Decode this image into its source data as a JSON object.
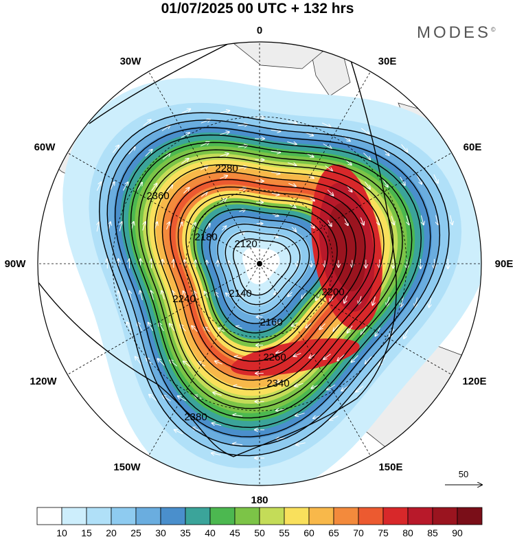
{
  "title": "01/07/2025  00 UTC  + 132 hrs",
  "brand": "MODES",
  "brand_mark": "©",
  "longitude_labels": [
    {
      "id": "lon-0",
      "text": "0"
    },
    {
      "id": "lon-30e",
      "text": "30E"
    },
    {
      "id": "lon-60e",
      "text": "60E"
    },
    {
      "id": "lon-90e",
      "text": "90E"
    },
    {
      "id": "lon-120e",
      "text": "120E"
    },
    {
      "id": "lon-150e",
      "text": "150E"
    },
    {
      "id": "lon-180",
      "text": "180"
    },
    {
      "id": "lon-150w",
      "text": "150W"
    },
    {
      "id": "lon-120w",
      "text": "120W"
    },
    {
      "id": "lon-90w",
      "text": "90W"
    },
    {
      "id": "lon-60w",
      "text": "60W"
    },
    {
      "id": "lon-30w",
      "text": "30W"
    }
  ],
  "contour_labels": [
    "2120",
    "2140",
    "2160",
    "2180",
    "2200",
    "2240",
    "2260",
    "2280",
    "2340",
    "2360",
    "2380"
  ],
  "wind_reference": {
    "value": "50",
    "icon": "arrow-right-icon"
  },
  "colorbar": {
    "tick_labels": [
      "10",
      "15",
      "20",
      "25",
      "30",
      "35",
      "40",
      "45",
      "50",
      "55",
      "60",
      "65",
      "70",
      "75",
      "80",
      "85",
      "90"
    ],
    "colors": [
      "#ffffff",
      "#cdeefc",
      "#b0e0f8",
      "#8ecbf0",
      "#6aaddf",
      "#4a8fcc",
      "#3ba49a",
      "#4cb850",
      "#7cc447",
      "#c4dc58",
      "#f9e05c",
      "#f8b84a",
      "#f38a3c",
      "#ec5a30",
      "#d8282a",
      "#b8192a",
      "#9a141f",
      "#7a0e18"
    ]
  },
  "colors": {
    "land": "#ededed",
    "coast": "#333333",
    "contour": "#000000",
    "wind_arrow": "#ffffff"
  }
}
